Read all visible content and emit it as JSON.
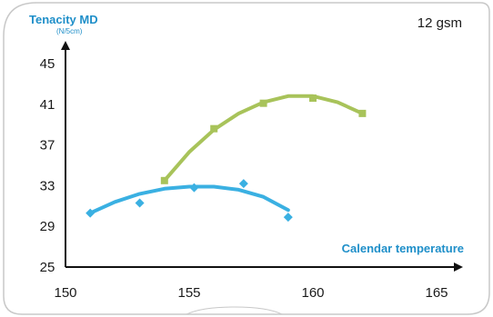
{
  "chart_data": {
    "type": "scatter",
    "ylabel": "Tenacity MD",
    "yunit": "(N/5cm)",
    "xlabel": "Calendar temperature",
    "badge": "12 gsm",
    "xlim": [
      150,
      165
    ],
    "ylim": [
      25,
      45
    ],
    "x_ticks": [
      150,
      155,
      160,
      165
    ],
    "y_ticks": [
      25,
      29,
      33,
      37,
      41,
      45
    ],
    "grid": false,
    "series": [
      {
        "color": "#3ab0e2",
        "marker": "diamond",
        "points": [
          [
            151,
            30.3
          ],
          [
            153,
            31.3
          ],
          [
            155.2,
            32.8
          ],
          [
            157.2,
            33.2
          ],
          [
            159,
            29.9
          ]
        ],
        "trend": [
          [
            151,
            30.3
          ],
          [
            152,
            31.4
          ],
          [
            153,
            32.2
          ],
          [
            154,
            32.7
          ],
          [
            155,
            32.9
          ],
          [
            156,
            32.9
          ],
          [
            157,
            32.6
          ],
          [
            158,
            31.9
          ],
          [
            159,
            30.6
          ]
        ]
      },
      {
        "color": "#a8c35a",
        "marker": "square",
        "points": [
          [
            154,
            33.5
          ],
          [
            156,
            38.6
          ],
          [
            158,
            41.1
          ],
          [
            160,
            41.6
          ],
          [
            162,
            40.1
          ]
        ],
        "trend": [
          [
            154,
            33.5
          ],
          [
            155,
            36.3
          ],
          [
            156,
            38.5
          ],
          [
            157,
            40.1
          ],
          [
            158,
            41.2
          ],
          [
            159,
            41.8
          ],
          [
            160,
            41.8
          ],
          [
            161,
            41.2
          ],
          [
            162,
            40.1
          ]
        ]
      }
    ]
  }
}
